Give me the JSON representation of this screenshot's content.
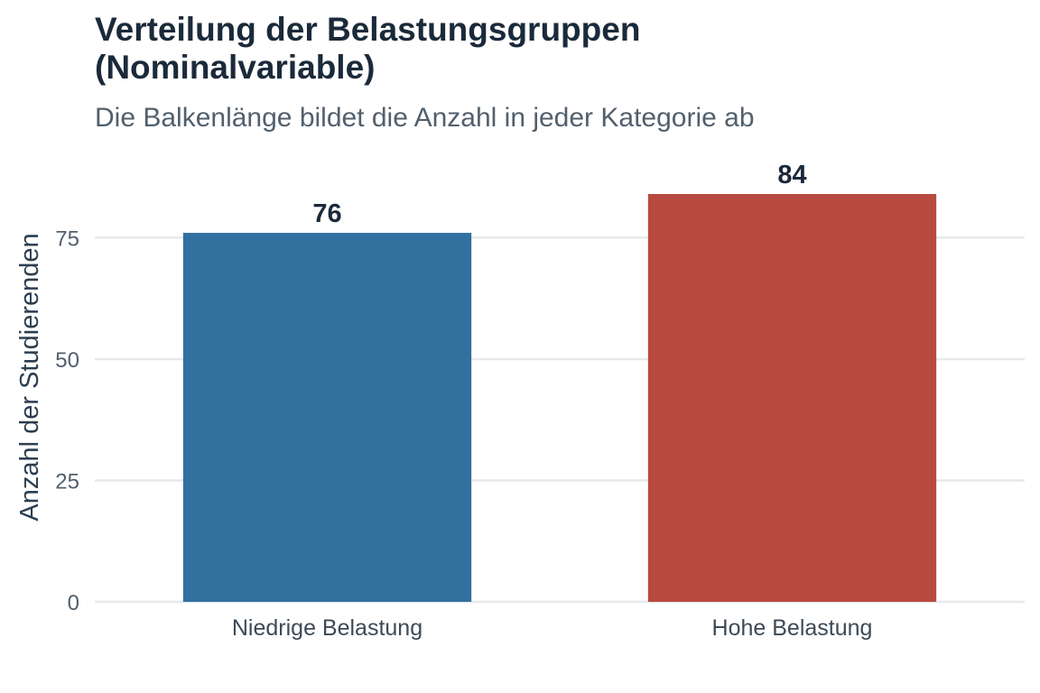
{
  "chart_data": {
    "type": "bar",
    "title": "Verteilung der Belastungsgruppen (Nominalvariable)",
    "subtitle": "Die Balkenlänge bildet die Anzahl in jeder Kategorie ab",
    "xlabel": "",
    "ylabel": "Anzahl der Studierenden",
    "categories": [
      "Niedrige Belastung",
      "Hohe Belastung"
    ],
    "values": [
      76,
      84
    ],
    "data_labels": [
      "76",
      "84"
    ],
    "colors": [
      "#31709f",
      "#b84a3f"
    ],
    "yticks": [
      0,
      25,
      50,
      75
    ],
    "ytick_labels": [
      "0",
      "25",
      "50",
      "75"
    ],
    "ylim": [
      0,
      84
    ],
    "grid": true,
    "legend": "none"
  }
}
